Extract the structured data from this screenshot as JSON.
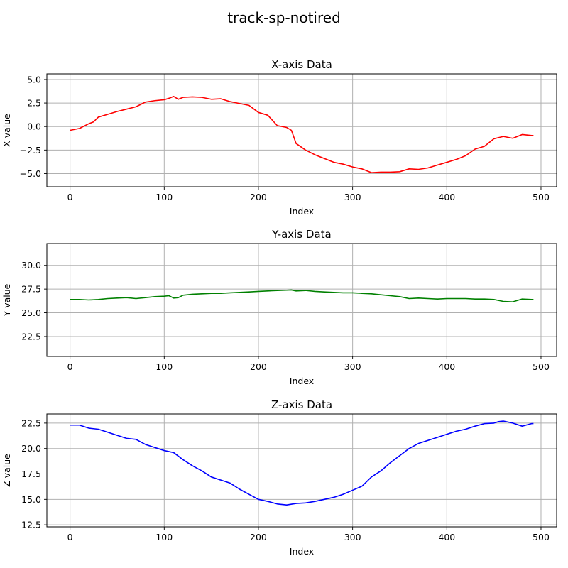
{
  "title": "track-sp-notired",
  "chart_data": [
    {
      "type": "line",
      "title": "X-axis Data",
      "xlabel": "Index",
      "ylabel": "X value",
      "color": "#ff0000",
      "xlim": [
        -24.6,
        516.6
      ],
      "ylim": [
        -6.4,
        5.6
      ],
      "xticks": [
        0,
        100,
        200,
        300,
        400,
        500
      ],
      "yticks": [
        -5.0,
        -2.5,
        0.0,
        2.5,
        5.0
      ],
      "ytick_labels": [
        "−5.0",
        "−2.5",
        "0.0",
        "2.5",
        "5.0"
      ],
      "grid": true,
      "x": [
        0,
        10,
        20,
        25,
        30,
        40,
        50,
        60,
        70,
        80,
        90,
        100,
        105,
        110,
        115,
        120,
        130,
        140,
        150,
        160,
        170,
        180,
        190,
        200,
        210,
        220,
        230,
        235,
        240,
        250,
        260,
        270,
        280,
        290,
        300,
        310,
        320,
        330,
        340,
        350,
        360,
        370,
        380,
        390,
        400,
        410,
        420,
        430,
        440,
        450,
        460,
        470,
        480,
        490,
        492
      ],
      "values": [
        -0.4,
        -0.2,
        0.3,
        0.5,
        1.0,
        1.3,
        1.6,
        1.85,
        2.1,
        2.6,
        2.75,
        2.85,
        3.0,
        3.2,
        2.9,
        3.1,
        3.15,
        3.1,
        2.9,
        2.95,
        2.65,
        2.45,
        2.25,
        1.5,
        1.2,
        0.1,
        -0.1,
        -0.4,
        -1.8,
        -2.5,
        -3.0,
        -3.4,
        -3.8,
        -4.0,
        -4.3,
        -4.5,
        -4.9,
        -4.85,
        -4.85,
        -4.8,
        -4.5,
        -4.55,
        -4.4,
        -4.1,
        -3.8,
        -3.5,
        -3.1,
        -2.4,
        -2.1,
        -1.3,
        -1.05,
        -1.25,
        -0.85,
        -0.95,
        -0.95
      ]
    },
    {
      "type": "line",
      "title": "Y-axis Data",
      "xlabel": "Index",
      "ylabel": "Y value",
      "color": "#008000",
      "xlim": [
        -24.6,
        516.6
      ],
      "ylim": [
        20.4,
        32.3
      ],
      "xticks": [
        0,
        100,
        200,
        300,
        400,
        500
      ],
      "yticks": [
        22.5,
        25.0,
        27.5,
        30.0
      ],
      "ytick_labels": [
        "22.5",
        "25.0",
        "27.5",
        "30.0"
      ],
      "grid": true,
      "x": [
        0,
        10,
        20,
        30,
        40,
        50,
        60,
        70,
        80,
        90,
        100,
        105,
        110,
        115,
        120,
        130,
        140,
        150,
        160,
        170,
        180,
        190,
        200,
        210,
        220,
        230,
        235,
        240,
        250,
        260,
        270,
        280,
        290,
        300,
        310,
        320,
        330,
        340,
        350,
        360,
        370,
        380,
        390,
        400,
        410,
        420,
        430,
        440,
        450,
        460,
        470,
        480,
        490,
        492
      ],
      "values": [
        26.4,
        26.4,
        26.35,
        26.4,
        26.5,
        26.55,
        26.6,
        26.5,
        26.6,
        26.7,
        26.75,
        26.8,
        26.55,
        26.6,
        26.85,
        26.95,
        27.0,
        27.05,
        27.05,
        27.1,
        27.15,
        27.2,
        27.25,
        27.3,
        27.35,
        27.38,
        27.4,
        27.3,
        27.35,
        27.25,
        27.2,
        27.15,
        27.1,
        27.1,
        27.05,
        27.0,
        26.9,
        26.8,
        26.7,
        26.5,
        26.55,
        26.5,
        26.45,
        26.5,
        26.5,
        26.5,
        26.45,
        26.45,
        26.4,
        26.2,
        26.15,
        26.45,
        26.4,
        26.4
      ]
    },
    {
      "type": "line",
      "title": "Z-axis Data",
      "xlabel": "Index",
      "ylabel": "Z value",
      "color": "#0000ff",
      "xlim": [
        -24.6,
        516.6
      ],
      "ylim": [
        12.3,
        23.4
      ],
      "xticks": [
        0,
        100,
        200,
        300,
        400,
        500
      ],
      "yticks": [
        12.5,
        15.0,
        17.5,
        20.0,
        22.5
      ],
      "ytick_labels": [
        "12.5",
        "15.0",
        "17.5",
        "20.0",
        "22.5"
      ],
      "grid": true,
      "x": [
        0,
        10,
        20,
        30,
        40,
        50,
        60,
        70,
        80,
        90,
        100,
        110,
        120,
        130,
        140,
        150,
        160,
        170,
        180,
        190,
        200,
        210,
        220,
        230,
        240,
        250,
        260,
        270,
        280,
        290,
        300,
        310,
        320,
        330,
        340,
        350,
        360,
        370,
        380,
        390,
        400,
        410,
        420,
        430,
        440,
        450,
        455,
        460,
        470,
        480,
        490,
        492
      ],
      "values": [
        22.3,
        22.3,
        22.0,
        21.9,
        21.6,
        21.3,
        21.0,
        20.9,
        20.4,
        20.1,
        19.8,
        19.6,
        18.9,
        18.3,
        17.8,
        17.2,
        16.9,
        16.6,
        16.0,
        15.5,
        15.0,
        14.8,
        14.55,
        14.45,
        14.6,
        14.65,
        14.8,
        15.0,
        15.2,
        15.5,
        15.9,
        16.3,
        17.2,
        17.8,
        18.6,
        19.3,
        20.0,
        20.5,
        20.8,
        21.1,
        21.4,
        21.7,
        21.9,
        22.2,
        22.45,
        22.5,
        22.65,
        22.7,
        22.5,
        22.2,
        22.45,
        22.45
      ]
    }
  ]
}
